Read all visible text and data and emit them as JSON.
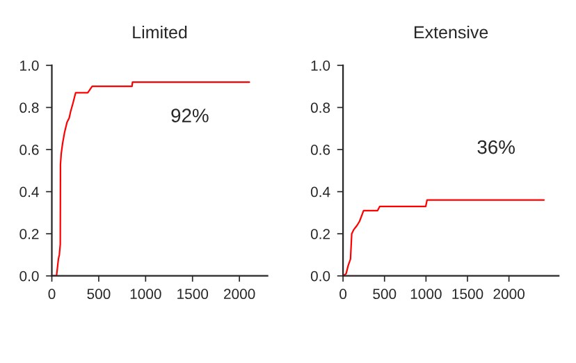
{
  "chart_data": [
    {
      "type": "line",
      "title": "Limited",
      "annotations": [
        "92%"
      ],
      "xlim": [
        0,
        2300
      ],
      "xticks": [
        0,
        500,
        1000,
        1500,
        2000
      ],
      "ylim": [
        0,
        1.0
      ],
      "yticks": [
        {
          "value": 0,
          "label": "0.0"
        },
        {
          "value": 0.2,
          "label": "0.2"
        },
        {
          "value": 0.4,
          "label": "0.4"
        },
        {
          "value": 0.6,
          "label": "0.6"
        },
        {
          "value": 0.8,
          "label": "0.8"
        },
        {
          "value": 1.0,
          "label": "1.0"
        }
      ],
      "grid": false,
      "series": [
        {
          "color": "#ff0000",
          "x": [
            0,
            50,
            60,
            70,
            80,
            90,
            92,
            100,
            115,
            135,
            162,
            185,
            200,
            225,
            254,
            383,
            430,
            855,
            860,
            2106
          ],
          "values": [
            0,
            0,
            0.04,
            0.08,
            0.1,
            0.15,
            0.53,
            0.58,
            0.63,
            0.68,
            0.73,
            0.75,
            0.78,
            0.82,
            0.87,
            0.87,
            0.9,
            0.9,
            0.92,
            0.92
          ]
        }
      ]
    },
    {
      "type": "line",
      "title": "Extensive",
      "annotations": [
        "36%"
      ],
      "xlim": [
        0,
        2600
      ],
      "xticks": [
        0,
        500,
        1000,
        1500,
        2000
      ],
      "ylim": [
        0,
        1.0
      ],
      "yticks": [
        {
          "value": 0,
          "label": "0.0"
        },
        {
          "value": 0.2,
          "label": "0.2"
        },
        {
          "value": 0.4,
          "label": "0.4"
        },
        {
          "value": 0.6,
          "label": "0.6"
        },
        {
          "value": 0.8,
          "label": "0.8"
        },
        {
          "value": 1.0,
          "label": "1.0"
        }
      ],
      "grid": false,
      "series": [
        {
          "color": "#ff0000",
          "x": [
            0,
            37,
            50,
            63,
            90,
            105,
            130,
            170,
            200,
            248,
            417,
            443,
            997,
            1013,
            2422
          ],
          "values": [
            0,
            0.01,
            0.03,
            0.05,
            0.08,
            0.2,
            0.22,
            0.24,
            0.26,
            0.31,
            0.31,
            0.33,
            0.33,
            0.36,
            0.36
          ]
        }
      ]
    }
  ]
}
